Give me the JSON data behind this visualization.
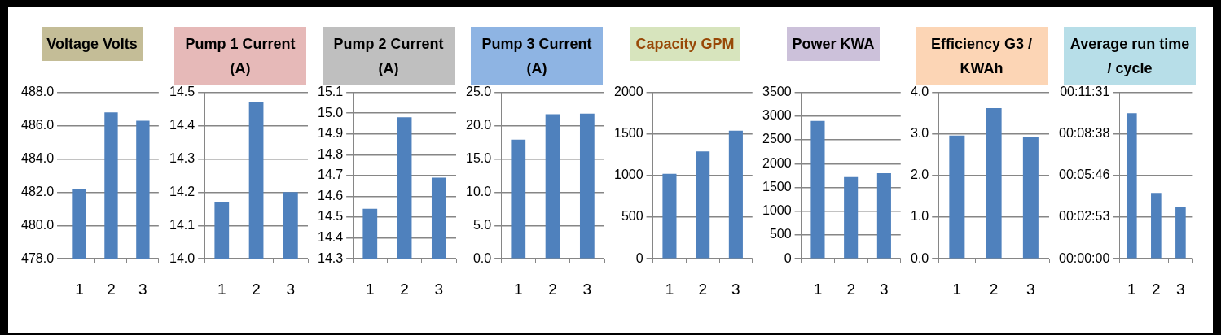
{
  "chart_data": [
    {
      "type": "bar",
      "title": "Voltage Volts",
      "categories": [
        "1",
        "2",
        "3"
      ],
      "values": [
        482.2,
        486.8,
        486.3
      ],
      "color": "#4f81bd",
      "ylim": [
        478,
        488
      ],
      "yticks": [
        {
          "value": 478,
          "label": "478.0"
        },
        {
          "value": 480,
          "label": "480.0"
        },
        {
          "value": 482,
          "label": "482.0"
        },
        {
          "value": 484,
          "label": "484.0"
        },
        {
          "value": 486,
          "label": "486.0"
        },
        {
          "value": 488,
          "label": "488.0"
        }
      ],
      "grid": "y",
      "legend": false
    },
    {
      "type": "bar",
      "title": "Pump 1 Current (A)",
      "categories": [
        "1",
        "2",
        "3"
      ],
      "values": [
        14.17,
        14.47,
        14.2
      ],
      "color": "#4f81bd",
      "ylim": [
        14,
        14.5
      ],
      "yticks": [
        {
          "value": 14,
          "label": "14.0"
        },
        14.1,
        14.2,
        14.3,
        14.4,
        14.5
      ],
      "grid": "y",
      "legend": false
    },
    {
      "type": "bar",
      "title": "Pump 2 Current (A)",
      "categories": [
        "1",
        "2",
        "3"
      ],
      "values": [
        14.54,
        14.98,
        14.69
      ],
      "color": "#4f81bd",
      "ylim": [
        14.3,
        15.1
      ],
      "yticks": [
        14.3,
        14.4,
        14.5,
        14.6,
        14.7,
        14.8,
        14.9,
        {
          "value": 15,
          "label": "15.0"
        },
        15.1
      ],
      "grid": "y",
      "legend": false
    },
    {
      "type": "bar",
      "title": "Pump 3 Current (A)",
      "categories": [
        "1",
        "2",
        "3"
      ],
      "values": [
        17.9,
        21.7,
        21.8
      ],
      "color": "#4f81bd",
      "ylim": [
        0,
        25
      ],
      "yticks": [
        {
          "value": 0,
          "label": "0.0"
        },
        {
          "value": 5,
          "label": "5.0"
        },
        {
          "value": 10,
          "label": "10.0"
        },
        {
          "value": 15,
          "label": "15.0"
        },
        {
          "value": 20,
          "label": "20.0"
        },
        {
          "value": 25,
          "label": "25.0"
        }
      ],
      "grid": "y",
      "legend": false
    },
    {
      "type": "bar",
      "title": "Capacity GPM",
      "categories": [
        "1",
        "2",
        "3"
      ],
      "values": [
        1020,
        1290,
        1540
      ],
      "color": "#4f81bd",
      "ylim": [
        0,
        2000
      ],
      "yticks": [
        0,
        500,
        1000,
        1500,
        2000
      ],
      "grid": "y",
      "legend": false
    },
    {
      "type": "bar",
      "title": "Power KWA",
      "categories": [
        "1",
        "2",
        "3"
      ],
      "values": [
        2900,
        1720,
        1800
      ],
      "color": "#4f81bd",
      "ylim": [
        0,
        3500
      ],
      "yticks": [
        0,
        500,
        1000,
        1500,
        2000,
        2500,
        3000,
        3500
      ],
      "grid": "y",
      "legend": false
    },
    {
      "type": "bar",
      "title": "Efficiency G3 / KWAh",
      "categories": [
        "1",
        "2",
        "3"
      ],
      "values": [
        2.96,
        3.62,
        2.92
      ],
      "color": "#4f81bd",
      "ylim": [
        0,
        4
      ],
      "yticks": [
        {
          "value": 0,
          "label": "0.0"
        },
        {
          "value": 1,
          "label": "1.0"
        },
        {
          "value": 2,
          "label": "2.0"
        },
        {
          "value": 3,
          "label": "3.0"
        },
        {
          "value": 4,
          "label": "4.0"
        }
      ],
      "grid": "y",
      "legend": false
    },
    {
      "type": "bar",
      "title": "Average run time / cycle",
      "categories": [
        "1",
        "2",
        "3"
      ],
      "values": [
        604,
        273,
        215
      ],
      "color": "#4f81bd",
      "ylim": [
        0,
        691
      ],
      "yticks": [
        {
          "value": 0,
          "label": "00:00:00"
        },
        {
          "value": 173,
          "label": "00:02:53"
        },
        {
          "value": 346,
          "label": "00:05:46"
        },
        {
          "value": 518,
          "label": "00:08:38"
        },
        {
          "value": 691,
          "label": "00:11:31"
        }
      ],
      "grid": "y",
      "legend": false
    }
  ]
}
